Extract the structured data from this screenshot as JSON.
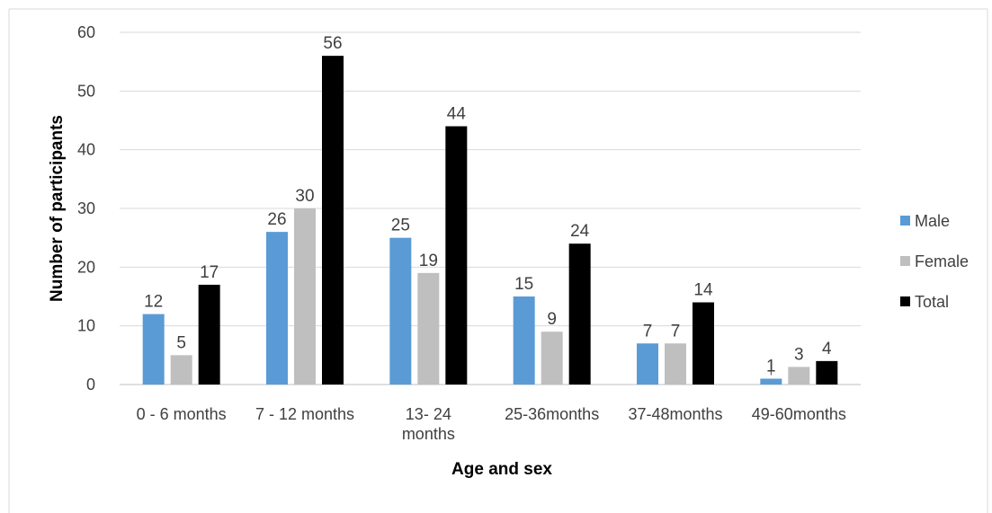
{
  "chart_data": {
    "type": "bar",
    "title": "",
    "xlabel": "Age and sex",
    "ylabel": "Number of participants",
    "ylim": [
      0,
      60
    ],
    "yticks": [
      0,
      10,
      20,
      30,
      40,
      50,
      60
    ],
    "grid": true,
    "legend_position": "right",
    "categories": [
      [
        "0 - 6 months"
      ],
      [
        "7 - 12 months"
      ],
      [
        "13- 24",
        "months"
      ],
      [
        "25-36months"
      ],
      [
        "37-48months"
      ],
      [
        "49-60months"
      ]
    ],
    "series": [
      {
        "name": "Male",
        "color": "#5B9BD5",
        "values": [
          12,
          26,
          25,
          15,
          7,
          1
        ]
      },
      {
        "name": "Female",
        "color": "#BFBFBF",
        "values": [
          5,
          30,
          19,
          9,
          7,
          3
        ]
      },
      {
        "name": "Total",
        "color": "#000000",
        "values": [
          17,
          56,
          44,
          24,
          14,
          4
        ]
      }
    ]
  }
}
